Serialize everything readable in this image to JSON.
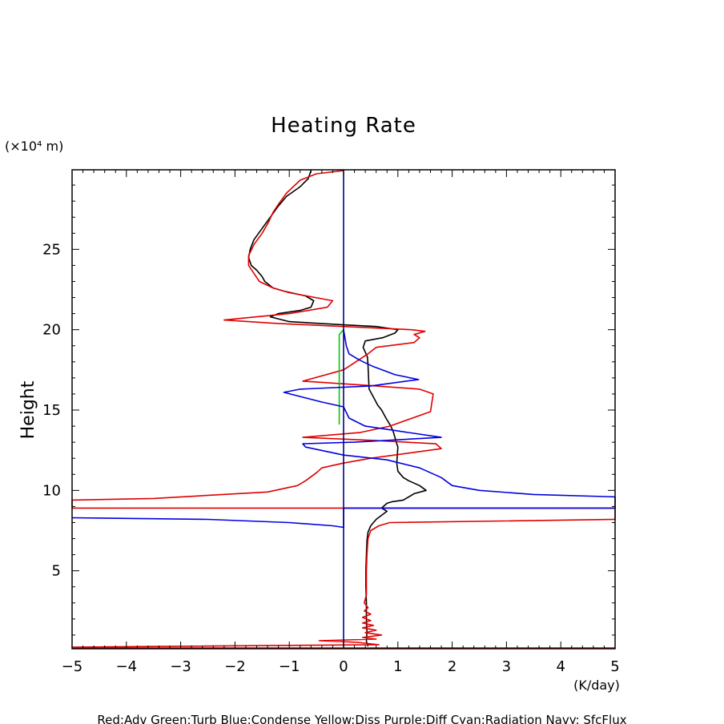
{
  "chart_data": {
    "type": "line",
    "title": "Heating Rate",
    "xlabel": "(K/day)",
    "ylabel": "Height",
    "yunit_label": "(×10⁴ m)",
    "xlim": [
      -5,
      5
    ],
    "ylim": [
      0.15,
      29.95
    ],
    "xticks": [
      -5,
      -4,
      -3,
      -2,
      -1,
      0,
      1,
      2,
      3,
      4,
      5
    ],
    "xtick_labels": [
      "−5",
      "−4",
      "−3",
      "−2",
      "−1",
      "0",
      "1",
      "2",
      "3",
      "4",
      "5"
    ],
    "yticks": [
      5,
      10,
      15,
      20,
      25
    ],
    "ytick_labels": [
      "5",
      "10",
      "15",
      "20",
      "25"
    ],
    "legend_text": "Red:Adv  Green:Turb  Blue:Condense  Yellow:Diss  Purple:Diff  Cyan:Radiation  Navy: SfcFlux",
    "colors": {
      "Black": "#000000",
      "Red": "#e00000",
      "Green": "#00cc00",
      "Blue": "#0000e0",
      "Navy": "#000080"
    },
    "series": [
      {
        "name": "Total",
        "color": "Black",
        "points": [
          [
            0.45,
            0.3
          ],
          [
            0.42,
            0.6
          ],
          [
            0.43,
            1.2
          ],
          [
            0.42,
            2.0
          ],
          [
            0.42,
            3.0
          ],
          [
            0.41,
            4.0
          ],
          [
            0.41,
            5.0
          ],
          [
            0.42,
            6.0
          ],
          [
            0.43,
            6.9
          ],
          [
            0.45,
            7.4
          ],
          [
            0.5,
            7.8
          ],
          [
            0.6,
            8.2
          ],
          [
            0.72,
            8.5
          ],
          [
            0.8,
            8.7
          ],
          [
            0.7,
            8.9
          ],
          [
            0.8,
            9.2
          ],
          [
            0.9,
            9.3
          ],
          [
            1.1,
            9.4
          ],
          [
            1.2,
            9.6
          ],
          [
            1.3,
            9.8
          ],
          [
            1.52,
            10.0
          ],
          [
            1.4,
            10.3
          ],
          [
            1.2,
            10.6
          ],
          [
            1.1,
            10.8
          ],
          [
            1.0,
            11.2
          ],
          [
            0.98,
            11.7
          ],
          [
            0.99,
            12.2
          ],
          [
            1.0,
            12.7
          ],
          [
            0.97,
            13.0
          ],
          [
            0.92,
            13.6
          ],
          [
            0.87,
            14.0
          ],
          [
            0.78,
            14.5
          ],
          [
            0.7,
            15.0
          ],
          [
            0.63,
            15.3
          ],
          [
            0.55,
            15.8
          ],
          [
            0.47,
            16.3
          ],
          [
            0.46,
            17.0
          ],
          [
            0.45,
            17.8
          ],
          [
            0.44,
            18.3
          ],
          [
            0.36,
            18.9
          ],
          [
            0.4,
            19.3
          ],
          [
            0.72,
            19.5
          ],
          [
            0.95,
            19.8
          ],
          [
            1.0,
            20.0
          ],
          [
            0.6,
            20.2
          ],
          [
            0.0,
            20.3
          ],
          [
            -1.0,
            20.5
          ],
          [
            -1.35,
            20.8
          ],
          [
            -1.2,
            21.0
          ],
          [
            -0.8,
            21.2
          ],
          [
            -0.6,
            21.4
          ],
          [
            -0.55,
            21.8
          ],
          [
            -0.7,
            22.1
          ],
          [
            -1.1,
            22.4
          ],
          [
            -1.3,
            22.6
          ],
          [
            -1.45,
            23.0
          ],
          [
            -1.5,
            23.3
          ],
          [
            -1.6,
            23.7
          ],
          [
            -1.7,
            24.0
          ],
          [
            -1.75,
            24.5
          ],
          [
            -1.72,
            25.0
          ],
          [
            -1.65,
            25.6
          ],
          [
            -1.5,
            26.3
          ],
          [
            -1.35,
            27.0
          ],
          [
            -1.2,
            27.7
          ],
          [
            -1.05,
            28.3
          ],
          [
            -0.8,
            28.9
          ],
          [
            -0.65,
            29.4
          ],
          [
            -0.6,
            29.9
          ]
        ]
      },
      {
        "name": "Red:Adv",
        "color": "Red",
        "points": [
          [
            5.0,
            0.2
          ],
          [
            -5.0,
            0.2
          ],
          [
            -5.0,
            0.25
          ],
          [
            0.65,
            0.4
          ],
          [
            0.25,
            0.55
          ],
          [
            -0.45,
            0.65
          ],
          [
            0.6,
            0.75
          ],
          [
            0.35,
            0.85
          ],
          [
            0.7,
            1.0
          ],
          [
            0.4,
            1.15
          ],
          [
            0.6,
            1.3
          ],
          [
            0.35,
            1.45
          ],
          [
            0.55,
            1.6
          ],
          [
            0.35,
            1.75
          ],
          [
            0.5,
            1.9
          ],
          [
            0.35,
            2.1
          ],
          [
            0.5,
            2.3
          ],
          [
            0.38,
            2.5
          ],
          [
            0.45,
            2.7
          ],
          [
            0.38,
            3.0
          ],
          [
            0.42,
            3.5
          ],
          [
            0.42,
            5.0
          ],
          [
            0.43,
            6.0
          ],
          [
            0.45,
            7.0
          ],
          [
            0.5,
            7.5
          ],
          [
            0.65,
            7.8
          ],
          [
            0.85,
            8.0
          ],
          [
            5.0,
            8.2
          ],
          [
            5.0,
            8.9
          ],
          [
            -5.0,
            8.9
          ],
          [
            -5.0,
            9.4
          ],
          [
            -3.5,
            9.5
          ],
          [
            -1.4,
            9.9
          ],
          [
            -0.85,
            10.3
          ],
          [
            -0.7,
            10.6
          ],
          [
            -0.5,
            11.1
          ],
          [
            -0.4,
            11.4
          ],
          [
            0.0,
            11.7
          ],
          [
            0.5,
            12.0
          ],
          [
            1.8,
            12.6
          ],
          [
            1.7,
            12.9
          ],
          [
            0.6,
            13.1
          ],
          [
            -0.75,
            13.3
          ],
          [
            0.3,
            13.6
          ],
          [
            0.85,
            14.0
          ],
          [
            1.6,
            14.9
          ],
          [
            1.65,
            16.0
          ],
          [
            1.4,
            16.3
          ],
          [
            0.6,
            16.5
          ],
          [
            -0.75,
            16.8
          ],
          [
            0.0,
            17.5
          ],
          [
            0.45,
            18.5
          ],
          [
            0.6,
            18.9
          ],
          [
            1.3,
            19.2
          ],
          [
            1.4,
            19.5
          ],
          [
            1.3,
            19.7
          ],
          [
            1.5,
            19.9
          ],
          [
            1.25,
            20.0
          ],
          [
            0.0,
            20.2
          ],
          [
            -1.3,
            20.4
          ],
          [
            -2.2,
            20.6
          ],
          [
            -1.0,
            21.0
          ],
          [
            -0.3,
            21.4
          ],
          [
            -0.2,
            21.8
          ],
          [
            -1.0,
            22.3
          ],
          [
            -1.3,
            22.6
          ],
          [
            -1.55,
            23.0
          ],
          [
            -1.65,
            23.5
          ],
          [
            -1.75,
            24.0
          ],
          [
            -1.75,
            24.6
          ],
          [
            -1.65,
            25.3
          ],
          [
            -1.5,
            26.0
          ],
          [
            -1.38,
            26.7
          ],
          [
            -1.3,
            27.3
          ],
          [
            -1.2,
            27.8
          ],
          [
            -1.05,
            28.5
          ],
          [
            -0.8,
            29.3
          ],
          [
            -0.5,
            29.7
          ],
          [
            0.0,
            29.9
          ]
        ]
      },
      {
        "name": "Green:Turb",
        "color": "Green",
        "points": [
          [
            -0.08,
            14.1
          ],
          [
            -0.08,
            19.7
          ],
          [
            0.0,
            20.0
          ]
        ]
      },
      {
        "name": "Blue:Condense",
        "color": "Blue",
        "points": [
          [
            -5.0,
            8.3
          ],
          [
            -2.5,
            8.2
          ],
          [
            -1.0,
            8.0
          ],
          [
            -0.2,
            7.8
          ],
          [
            0.0,
            7.7
          ],
          [
            0.0,
            8.9
          ],
          [
            5.0,
            8.9
          ],
          [
            5.0,
            9.6
          ],
          [
            3.5,
            9.75
          ],
          [
            2.5,
            10.0
          ],
          [
            2.0,
            10.3
          ],
          [
            1.8,
            10.8
          ],
          [
            1.4,
            11.4
          ],
          [
            0.8,
            11.9
          ],
          [
            0.0,
            12.2
          ],
          [
            -0.7,
            12.7
          ],
          [
            -0.75,
            12.9
          ],
          [
            0.2,
            13.0
          ],
          [
            1.8,
            13.3
          ],
          [
            1.0,
            13.7
          ],
          [
            0.4,
            14.0
          ],
          [
            0.1,
            14.5
          ],
          [
            0.0,
            15.2
          ],
          [
            -0.4,
            15.5
          ],
          [
            -1.1,
            16.1
          ],
          [
            -0.8,
            16.3
          ],
          [
            0.5,
            16.5
          ],
          [
            1.38,
            16.9
          ],
          [
            0.95,
            17.2
          ],
          [
            0.55,
            17.7
          ],
          [
            0.3,
            18.1
          ],
          [
            0.1,
            18.5
          ],
          [
            0.05,
            19.0
          ],
          [
            0.0,
            20.0
          ]
        ]
      },
      {
        "name": "Navy:SfcFlux",
        "color": "Navy",
        "points": [
          [
            0.0,
            0.2
          ],
          [
            0.0,
            29.95
          ]
        ]
      }
    ]
  }
}
